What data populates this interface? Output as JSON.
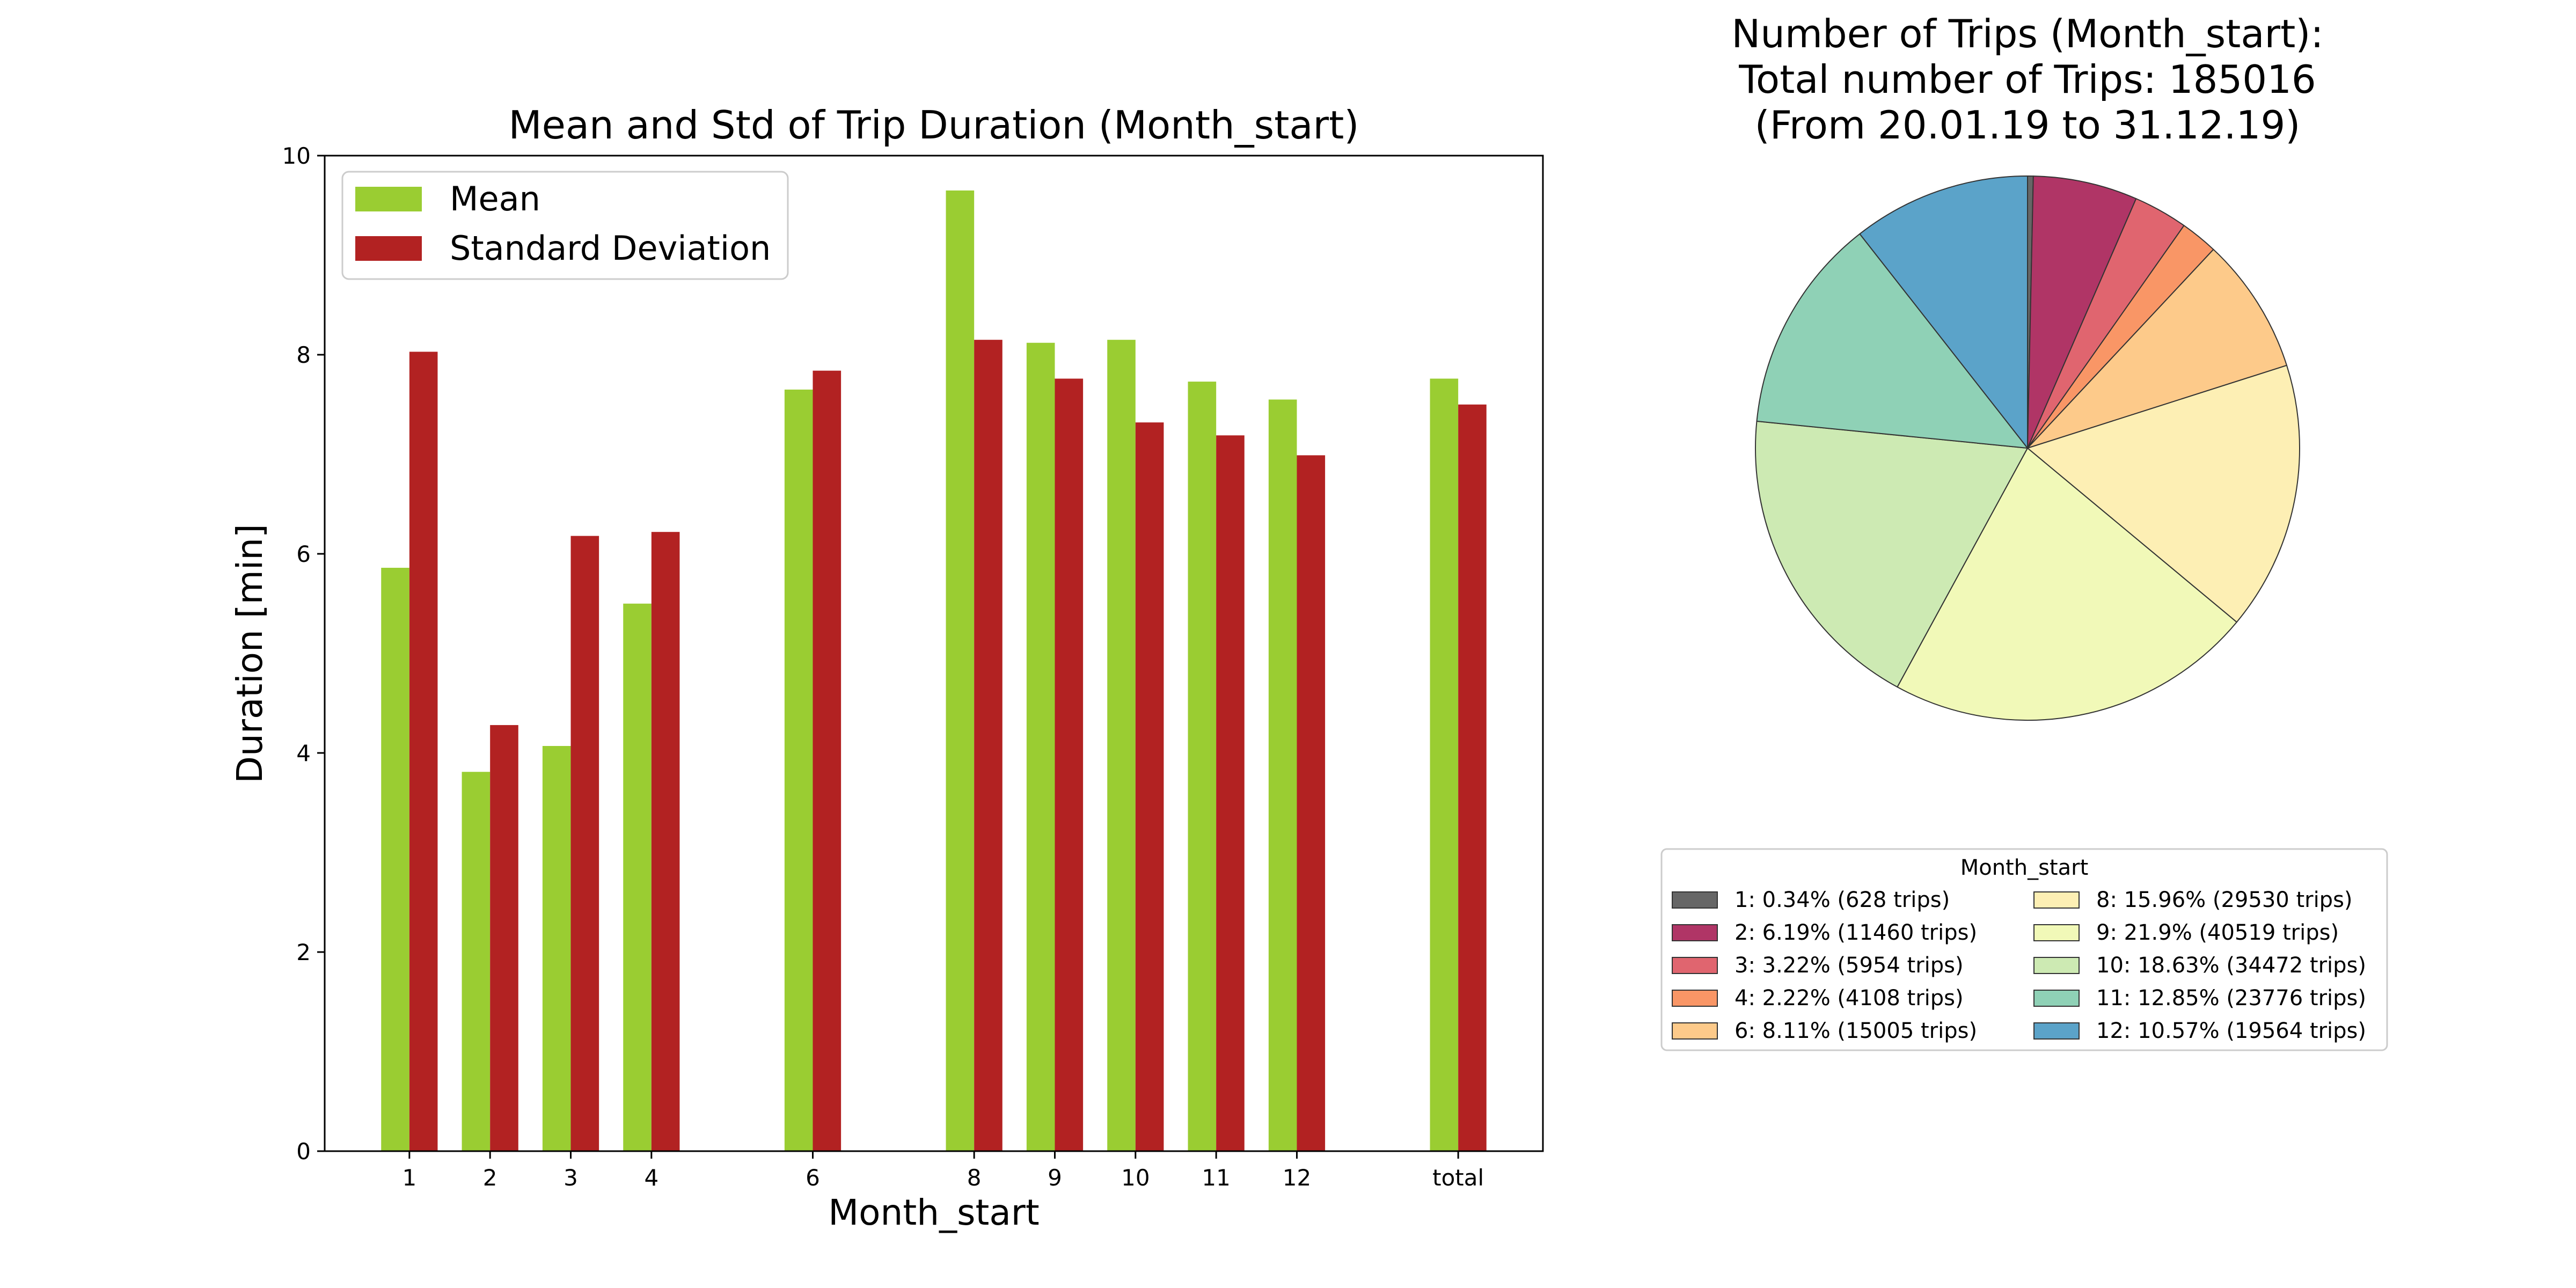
{
  "chart_data": [
    {
      "type": "bar",
      "title": "Mean and Std of Trip Duration (Month_start)",
      "xlabel": "Month_start",
      "ylabel": "Duration [min]",
      "categories": [
        "1",
        "2",
        "3",
        "4",
        "6",
        "8",
        "9",
        "10",
        "11",
        "12",
        "total"
      ],
      "x_positions": [
        1,
        2,
        3,
        4,
        6,
        8,
        9,
        10,
        11,
        12,
        14
      ],
      "xlim": [
        -0.05,
        15.05
      ],
      "ylim": [
        0,
        10
      ],
      "yticks": [
        "0",
        "2",
        "4",
        "6",
        "8",
        "10"
      ],
      "grid": false,
      "legend_position": "top-left",
      "series": [
        {
          "name": "Mean",
          "color": "#9acd32",
          "values": [
            5.86,
            3.81,
            4.07,
            5.5,
            7.65,
            9.65,
            8.12,
            8.15,
            7.73,
            7.55,
            7.76
          ]
        },
        {
          "name": "Standard Deviation",
          "color": "#b22222",
          "values": [
            8.03,
            4.28,
            6.18,
            6.22,
            7.84,
            8.15,
            7.76,
            7.32,
            7.19,
            6.99,
            7.5
          ]
        }
      ]
    },
    {
      "type": "pie",
      "title_lines": [
        "Number of Trips (Month_start):",
        "Total number of Trips: 185016",
        "(From 20.01.19 to 31.12.19)"
      ],
      "legend_title": "Month_start",
      "legend_position": "below",
      "start_angle_deg": 90,
      "direction": "clockwise",
      "slices": [
        {
          "label": "1: 0.34% (628 trips)",
          "value": 628,
          "color": "#666666"
        },
        {
          "label": "2: 6.19% (11460 trips)",
          "value": 11460,
          "color": "#b03566"
        },
        {
          "label": "3: 3.22% (5954 trips)",
          "value": 5954,
          "color": "#e0656f"
        },
        {
          "label": "4: 2.22% (4108 trips)",
          "value": 4108,
          "color": "#f99666"
        },
        {
          "label": "6: 8.11% (15005 trips)",
          "value": 15005,
          "color": "#fdca8a"
        },
        {
          "label": "8: 15.96% (29530 trips)",
          "value": 29530,
          "color": "#fdefb4"
        },
        {
          "label": "9: 21.9% (40519 trips)",
          "value": 40519,
          "color": "#f1f9b8"
        },
        {
          "label": "10: 18.63% (34472 trips)",
          "value": 34472,
          "color": "#cdeab3"
        },
        {
          "label": "11: 12.85% (23776 trips)",
          "value": 23776,
          "color": "#8fd1b6"
        },
        {
          "label": "12: 10.57% (19564 trips)",
          "value": 19564,
          "color": "#5ba3c9"
        }
      ]
    }
  ]
}
